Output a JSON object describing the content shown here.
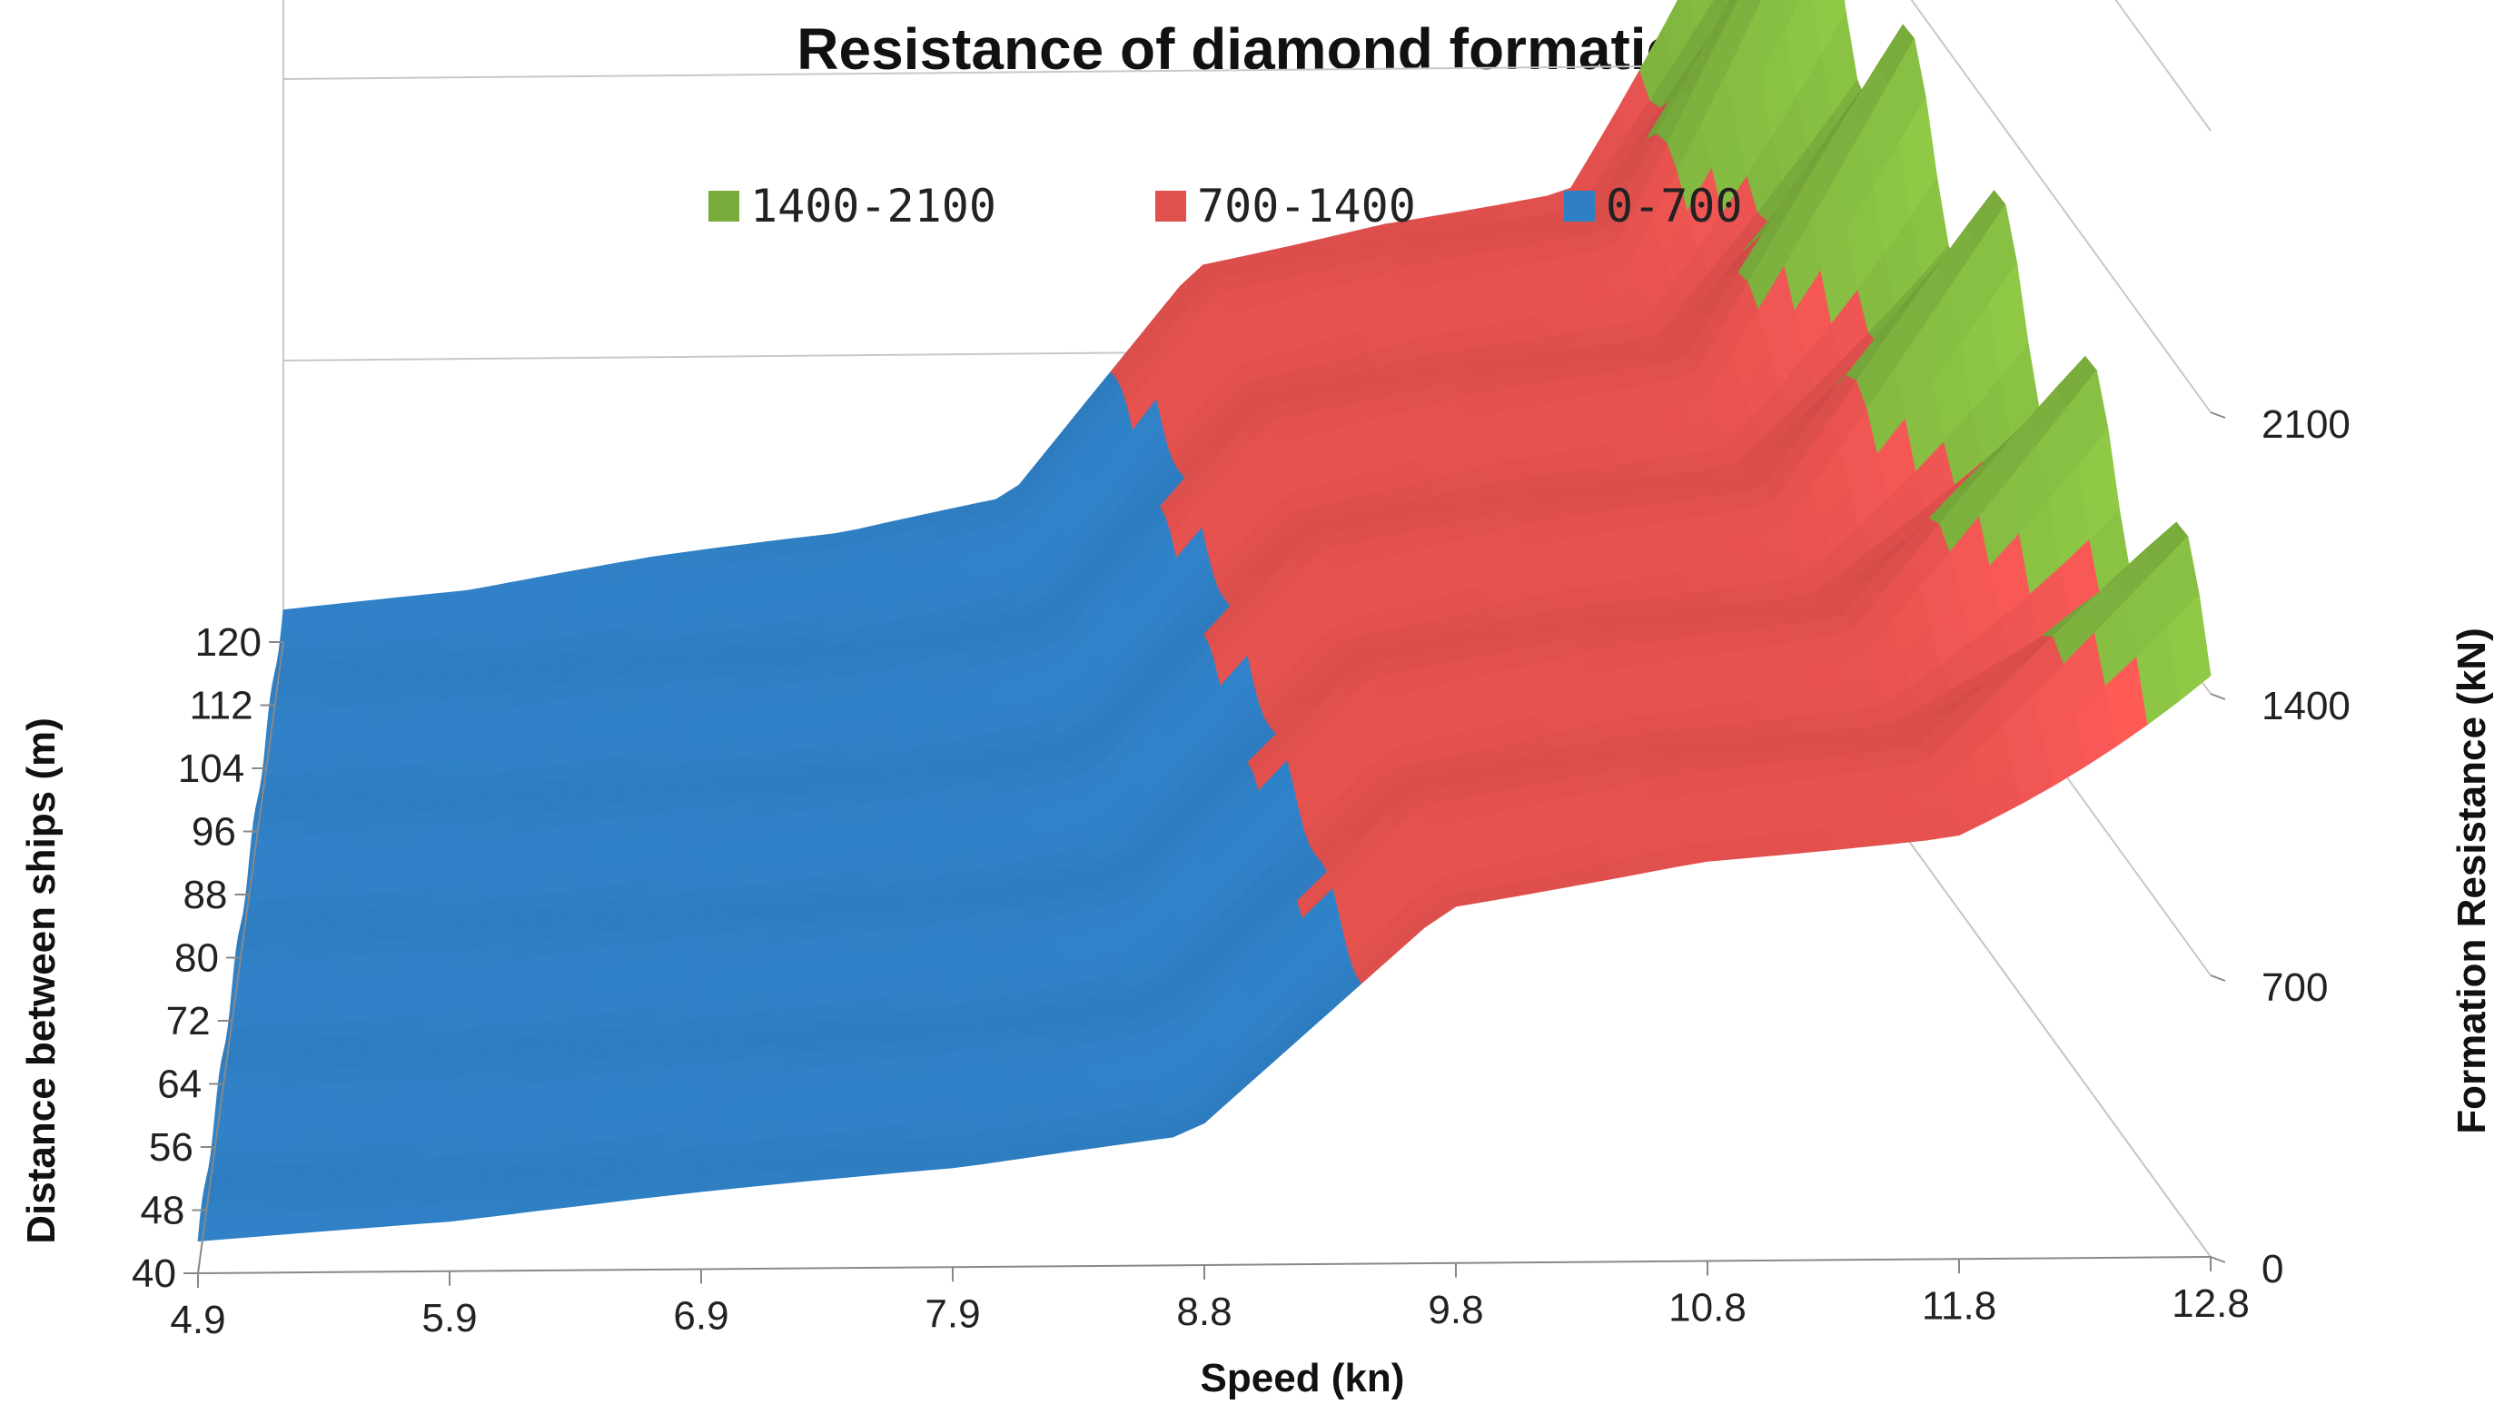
{
  "chart_data": {
    "type": "surface",
    "title": "Resistance of diamond formation",
    "xlabel": "Speed (kn)",
    "ylabel": "Distance between ships (m)",
    "zlabel": "Formation Resistance (kN)",
    "x_ticks": [
      "4.9",
      "5.9",
      "6.9",
      "7.9",
      "8.8",
      "9.8",
      "10.8",
      "11.8",
      "12.8"
    ],
    "y_ticks": [
      "40",
      "48",
      "56",
      "64",
      "72",
      "80",
      "88",
      "96",
      "104",
      "112",
      "120"
    ],
    "z_ticks": [
      "0",
      "700",
      "1400",
      "2100"
    ],
    "zlim": [
      0,
      2800
    ],
    "legend": [
      {
        "label": "1400-2100",
        "color": "#7aac3c"
      },
      {
        "label": "700-1400",
        "color": "#e0504d"
      },
      {
        "label": "0-700",
        "color": "#2f7fc4"
      }
    ],
    "speeds": [
      4.9,
      5.9,
      6.9,
      7.9,
      8.8,
      9.8,
      10.8,
      11.8,
      12.8
    ],
    "distances": [
      40,
      48,
      56,
      64,
      72,
      80,
      88,
      96,
      104,
      112,
      120
    ],
    "resistance_at_min_distance": [
      80,
      110,
      170,
      230,
      320,
      900,
      1020,
      1080,
      1500
    ],
    "resistance_at_max_distance": [
      80,
      110,
      180,
      240,
      340,
      930,
      1040,
      1120,
      2000
    ]
  },
  "colors": {
    "low": "#2f7fc4",
    "mid": "#e0504d",
    "high": "#7aac3c",
    "grid": "#c8c8c8",
    "axis": "#888888"
  }
}
